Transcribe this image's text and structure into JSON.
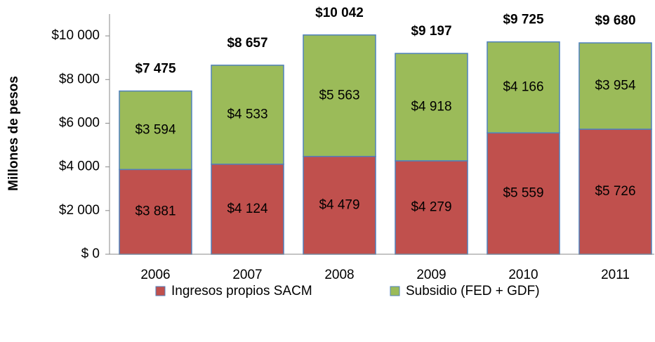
{
  "chart_data": {
    "type": "stacked_bar",
    "y_label": "Millones de pesos",
    "categories": [
      "2006",
      "2007",
      "2008",
      "2009",
      "2010",
      "2011"
    ],
    "series": [
      {
        "name": "Ingresos propios SACM",
        "color": "#c0504d",
        "values": [
          3881,
          4124,
          4479,
          4279,
          5559,
          5726
        ],
        "value_labels": [
          "$3 881",
          "$4 124",
          "$4 479",
          "$4 279",
          "$5 559",
          "$5 726"
        ]
      },
      {
        "name": "Subsidio (FED + GDF)",
        "color": "#9bbb59",
        "values": [
          3594,
          4533,
          5563,
          4918,
          4166,
          3954
        ],
        "value_labels": [
          "$3 594",
          "$4 533",
          "$5 563",
          "$4 918",
          "$4 166",
          "$3 954"
        ]
      }
    ],
    "totals": {
      "values": [
        7475,
        8657,
        10042,
        9197,
        9725,
        9680
      ],
      "value_labels": [
        "$7 475",
        "$8 657",
        "$10 042",
        "$9 197",
        "$9 725",
        "$9 680"
      ]
    },
    "ylim": [
      0,
      11000
    ],
    "yticks": [
      {
        "value": 0,
        "label": "$ 0"
      },
      {
        "value": 2000,
        "label": "$2 000"
      },
      {
        "value": 4000,
        "label": "$4 000"
      },
      {
        "value": 6000,
        "label": "$6 000"
      },
      {
        "value": 8000,
        "label": "$8 000"
      },
      {
        "value": 10000,
        "label": "$10 000"
      }
    ],
    "legend": "bottom"
  }
}
